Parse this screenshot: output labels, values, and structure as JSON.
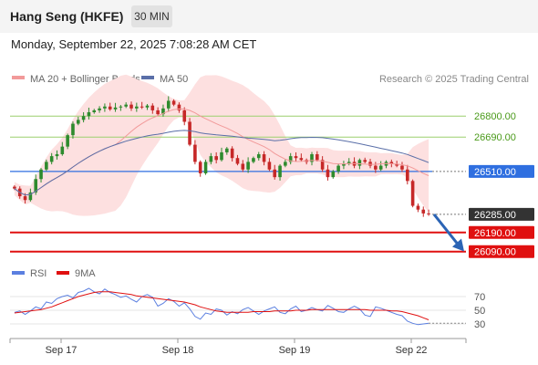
{
  "header": {
    "title": "Hang Seng (HKFE)",
    "timeframe": "30 MIN",
    "datetime": "Monday, September 22, 2025 7:08:28 AM CET"
  },
  "credit": "Research © 2025 Trading Central",
  "colors": {
    "up": "#2e8b2e",
    "down": "#c62828",
    "bollinger_fill": "#fde0e0",
    "ma20": "#f29a9a",
    "ma50": "#5a6fa8",
    "resistance": "#9bcf6e",
    "pivot": "#2f6fe0",
    "support": "#e01010",
    "last": "#333333",
    "rsi": "#5b7fe0",
    "rsi_ma": "#e01010",
    "arrow": "#2b64b5"
  },
  "chart_data": [
    {
      "type": "candlestick",
      "legend": [
        {
          "label": "MA 20 + Bollinger Bands",
          "color": "#f29a9a"
        },
        {
          "label": "MA 50",
          "color": "#5a6fa8"
        }
      ],
      "x_ticks": [
        "Sep 17",
        "Sep 18",
        "Sep 19",
        "Sep 22"
      ],
      "y_range": [
        26060,
        26930
      ],
      "levels": [
        {
          "value": 26800.0,
          "label": "26800.00",
          "kind": "resistance"
        },
        {
          "value": 26690.0,
          "label": "26690.00",
          "kind": "resistance"
        },
        {
          "value": 26510.0,
          "label": "26510.00",
          "kind": "pivot"
        },
        {
          "value": 26285.0,
          "label": "26285.00",
          "kind": "last"
        },
        {
          "value": 26190.0,
          "label": "26190.00",
          "kind": "support"
        },
        {
          "value": 26090.0,
          "label": "26090.00",
          "kind": "support"
        }
      ],
      "close_series": [
        26420,
        26380,
        26360,
        26400,
        26470,
        26520,
        26560,
        26590,
        26600,
        26640,
        26700,
        26760,
        26780,
        26800,
        26820,
        26830,
        26840,
        26850,
        26835,
        26845,
        26850,
        26860,
        26840,
        26850,
        26845,
        26855,
        26830,
        26810,
        26840,
        26880,
        26860,
        26830,
        26770,
        26650,
        26560,
        26500,
        26560,
        26590,
        26570,
        26610,
        26630,
        26580,
        26550,
        26520,
        26560,
        26580,
        26600,
        26560,
        26520,
        26480,
        26540,
        26560,
        26590,
        26580,
        26570,
        26560,
        26600,
        26570,
        26520,
        26480,
        26510,
        26540,
        26550,
        26560,
        26540,
        26570,
        26560,
        26540,
        26520,
        26540,
        26560,
        26550,
        26540,
        26520,
        26460,
        26330,
        26310,
        26290,
        26285
      ]
    },
    {
      "type": "line",
      "title": "RSI",
      "legend": [
        {
          "label": "RSI",
          "color": "#5b7fe0"
        },
        {
          "label": "9MA",
          "color": "#e01010"
        }
      ],
      "y_ticks": [
        "70",
        "50",
        "30"
      ],
      "y_range": [
        10,
        90
      ],
      "series": [
        {
          "name": "RSI",
          "values": [
            47,
            49,
            44,
            49,
            55,
            52,
            62,
            60,
            67,
            70,
            72,
            68,
            76,
            78,
            82,
            77,
            74,
            81,
            76,
            73,
            69,
            71,
            66,
            62,
            70,
            73,
            69,
            56,
            60,
            67,
            63,
            56,
            61,
            52,
            41,
            37,
            46,
            44,
            52,
            50,
            43,
            48,
            45,
            51,
            54,
            49,
            44,
            49,
            52,
            55,
            47,
            45,
            52,
            56,
            48,
            50,
            54,
            51,
            49,
            57,
            53,
            48,
            47,
            52,
            56,
            52,
            43,
            41,
            55,
            53,
            50,
            47,
            44,
            42,
            34,
            31,
            29,
            30,
            31
          ]
        },
        {
          "name": "9MA",
          "values": [
            46,
            47,
            48,
            49,
            50,
            51,
            53,
            55,
            58,
            61,
            64,
            67,
            70,
            72,
            74,
            76,
            77,
            77,
            77,
            76,
            75,
            74,
            73,
            71,
            70,
            69,
            68,
            67,
            66,
            65,
            64,
            63,
            62,
            60,
            58,
            55,
            53,
            51,
            49,
            48,
            47,
            47,
            47,
            47,
            47,
            48,
            48,
            48,
            48,
            49,
            49,
            49,
            49,
            50,
            50,
            50,
            51,
            51,
            51,
            51,
            51,
            51,
            51,
            51,
            51,
            51,
            51,
            50,
            50,
            50,
            50,
            49,
            49,
            48,
            46,
            44,
            42,
            39,
            36
          ]
        }
      ]
    }
  ]
}
